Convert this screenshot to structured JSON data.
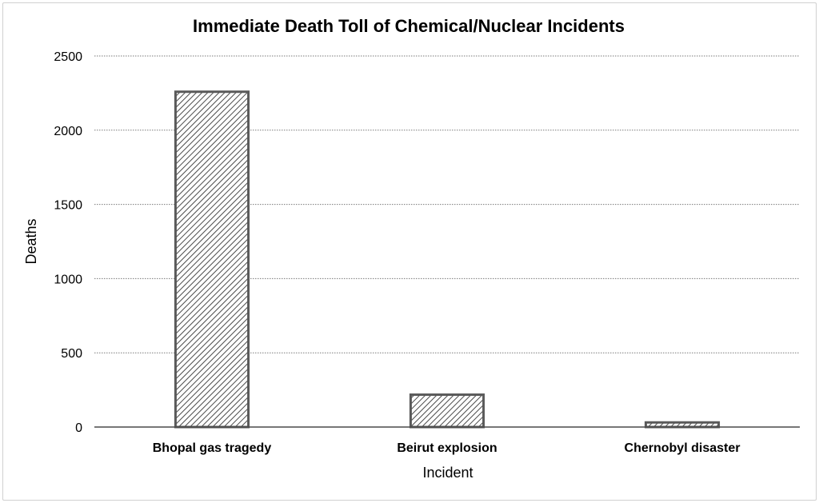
{
  "chart_data": {
    "type": "bar",
    "title": "Immediate Death Toll of Chemical/Nuclear Incidents",
    "xlabel": "Incident",
    "ylabel": "Deaths",
    "categories": [
      "Bhopal gas tragedy",
      "Beirut explosion",
      "Chernobyl disaster"
    ],
    "values": [
      2259,
      218,
      31
    ],
    "ylim": [
      0,
      2500
    ],
    "yticks": [
      0,
      500,
      1000,
      1500,
      2000,
      2500
    ],
    "grid": true,
    "legend": "none",
    "bar_fill": "diagonal-hatch",
    "colors": {
      "bar_stroke": "#5a5a5a",
      "hatch": "#4a4a4a",
      "grid": "#7a7a7a",
      "axis": "#4a4a4a"
    }
  }
}
